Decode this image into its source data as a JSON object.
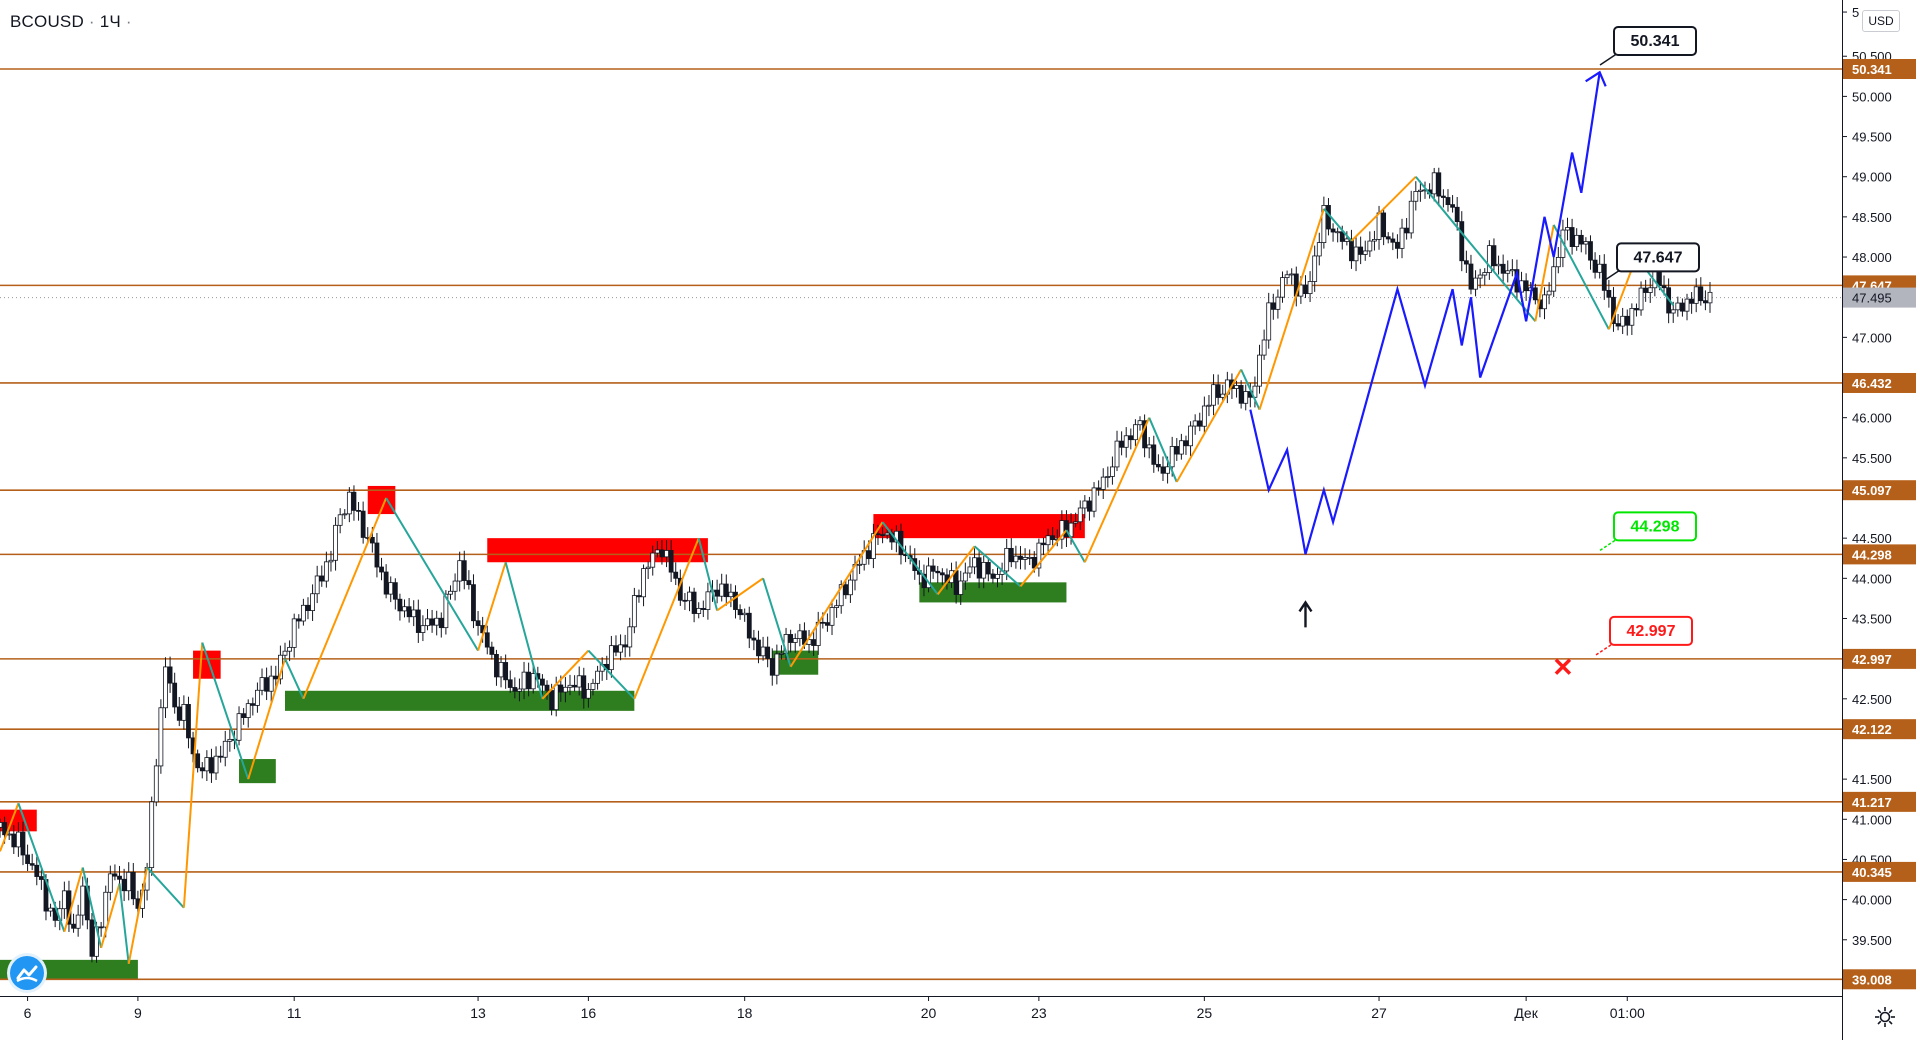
{
  "header": {
    "symbol": "BCOUSD",
    "separator1": "·",
    "interval": "1Ч",
    "separator2": "·"
  },
  "currency": "USD",
  "icons": {
    "settings": "gear-icon",
    "logo": "tradingview-cloud-icon"
  },
  "chart_data": {
    "type": "candlestick",
    "title": "BCOUSD · 1Ч",
    "ylim": [
      38.8,
      51.2
    ],
    "y_axis_ticks": [
      "5",
      "50.500",
      "50.000",
      "49.500",
      "49.000",
      "48.500",
      "48.000",
      "47.000",
      "46.000",
      "45.500",
      "44.500",
      "44.000",
      "43.500",
      "42.500",
      "41.500",
      "41.000",
      "40.500",
      "40.000",
      "39.500"
    ],
    "x_axis_ticks": [
      "6",
      "9",
      "11",
      "13",
      "16",
      "18",
      "20",
      "23",
      "25",
      "27",
      "Дек",
      "01:00"
    ],
    "current_price": "47.495",
    "levels": [
      "50.341",
      "47.647",
      "46.432",
      "45.097",
      "44.298",
      "42.997",
      "42.122",
      "41.217",
      "40.345",
      "39.008"
    ],
    "level_color": "#b5601a",
    "targets": [
      {
        "label": "50.341",
        "value": 50.341,
        "color": "#131722"
      },
      {
        "label": "47.647",
        "value": 47.647,
        "color": "#131722"
      },
      {
        "label": "44.298",
        "value": 44.298,
        "color": "#00e600"
      },
      {
        "label": "42.997",
        "value": 42.997,
        "color": "#ff1a1a"
      }
    ],
    "price_path": [
      [
        0,
        40.9
      ],
      [
        2,
        40.7
      ],
      [
        4,
        40.3
      ],
      [
        6,
        39.7
      ],
      [
        7,
        40.1
      ],
      [
        8,
        39.5
      ],
      [
        9,
        40.2
      ],
      [
        10,
        39.3
      ],
      [
        12,
        40.3
      ],
      [
        14,
        40.2
      ],
      [
        15,
        39.9
      ],
      [
        16,
        40.4
      ],
      [
        17,
        41.8
      ],
      [
        18,
        42.9
      ],
      [
        19,
        42.4
      ],
      [
        20,
        42.3
      ],
      [
        21,
        41.8
      ],
      [
        22,
        41.6
      ],
      [
        24,
        41.8
      ],
      [
        26,
        42.2
      ],
      [
        28,
        42.6
      ],
      [
        30,
        42.8
      ],
      [
        32,
        43.4
      ],
      [
        34,
        43.8
      ],
      [
        36,
        44.3
      ],
      [
        37,
        44.8
      ],
      [
        38,
        45.0
      ],
      [
        40,
        44.5
      ],
      [
        42,
        43.9
      ],
      [
        44,
        43.6
      ],
      [
        46,
        43.4
      ],
      [
        48,
        43.5
      ],
      [
        50,
        44.2
      ],
      [
        52,
        43.4
      ],
      [
        54,
        42.9
      ],
      [
        56,
        42.6
      ],
      [
        58,
        42.8
      ],
      [
        60,
        42.5
      ],
      [
        62,
        42.7
      ],
      [
        64,
        42.6
      ],
      [
        66,
        43.0
      ],
      [
        68,
        43.2
      ],
      [
        70,
        44.1
      ],
      [
        72,
        44.4
      ],
      [
        74,
        43.8
      ],
      [
        76,
        43.6
      ],
      [
        78,
        43.9
      ],
      [
        80,
        43.7
      ],
      [
        82,
        43.2
      ],
      [
        84,
        42.9
      ],
      [
        86,
        43.3
      ],
      [
        88,
        43.2
      ],
      [
        90,
        43.5
      ],
      [
        92,
        43.9
      ],
      [
        94,
        44.3
      ],
      [
        96,
        44.6
      ],
      [
        98,
        44.4
      ],
      [
        100,
        44.0
      ],
      [
        102,
        44.1
      ],
      [
        104,
        43.9
      ],
      [
        106,
        44.2
      ],
      [
        108,
        44.0
      ],
      [
        110,
        44.3
      ],
      [
        112,
        44.2
      ],
      [
        114,
        44.5
      ],
      [
        116,
        44.6
      ],
      [
        118,
        44.9
      ],
      [
        120,
        45.2
      ],
      [
        122,
        45.7
      ],
      [
        124,
        45.9
      ],
      [
        126,
        45.3
      ],
      [
        128,
        45.6
      ],
      [
        130,
        45.9
      ],
      [
        132,
        46.3
      ],
      [
        134,
        46.4
      ],
      [
        136,
        46.2
      ],
      [
        138,
        47.3
      ],
      [
        140,
        47.8
      ],
      [
        142,
        47.5
      ],
      [
        144,
        48.5
      ],
      [
        146,
        48.2
      ],
      [
        148,
        48.0
      ],
      [
        150,
        48.4
      ],
      [
        152,
        48.1
      ],
      [
        154,
        48.8
      ],
      [
        156,
        48.9
      ],
      [
        158,
        48.6
      ],
      [
        160,
        47.6
      ],
      [
        162,
        48.0
      ],
      [
        164,
        47.8
      ],
      [
        166,
        47.6
      ],
      [
        168,
        47.4
      ],
      [
        170,
        48.3
      ],
      [
        172,
        48.2
      ],
      [
        174,
        47.8
      ],
      [
        176,
        47.1
      ],
      [
        178,
        47.4
      ],
      [
        180,
        47.8
      ],
      [
        182,
        47.3
      ],
      [
        184,
        47.5
      ],
      [
        186,
        47.5
      ]
    ],
    "candle_time_range": [
      0,
      186
    ],
    "zones": [
      {
        "type": "supply",
        "t0": 0,
        "t1": 4,
        "y0": 40.85,
        "y1": 41.12
      },
      {
        "type": "demand",
        "t0": 0,
        "t1": 15,
        "y0": 39.0,
        "y1": 39.25
      },
      {
        "type": "supply",
        "t0": 21,
        "t1": 24,
        "y0": 42.75,
        "y1": 43.1
      },
      {
        "type": "demand",
        "t0": 26,
        "t1": 30,
        "y0": 41.45,
        "y1": 41.75
      },
      {
        "type": "supply",
        "t0": 40,
        "t1": 43,
        "y0": 44.8,
        "y1": 45.15
      },
      {
        "type": "demand",
        "t0": 31,
        "t1": 69,
        "y0": 42.35,
        "y1": 42.6
      },
      {
        "type": "supply",
        "t0": 53,
        "t1": 77,
        "y0": 44.2,
        "y1": 44.5
      },
      {
        "type": "demand",
        "t0": 84,
        "t1": 89,
        "y0": 42.8,
        "y1": 43.1
      },
      {
        "type": "supply",
        "t0": 95,
        "t1": 118,
        "y0": 44.5,
        "y1": 44.8
      },
      {
        "type": "demand",
        "t0": 100,
        "t1": 116,
        "y0": 43.7,
        "y1": 43.95
      }
    ],
    "zigzag": [
      [
        0,
        40.6
      ],
      [
        2,
        41.2
      ],
      [
        7,
        39.6
      ],
      [
        9,
        40.4
      ],
      [
        11,
        39.4
      ],
      [
        13,
        40.2
      ],
      [
        14,
        39.2
      ],
      [
        16,
        40.4
      ],
      [
        20,
        39.9
      ],
      [
        22,
        43.2
      ],
      [
        27,
        41.5
      ],
      [
        31,
        43.0
      ],
      [
        33,
        42.5
      ],
      [
        42,
        45.0
      ],
      [
        52,
        43.1
      ],
      [
        55,
        44.2
      ],
      [
        59,
        42.5
      ],
      [
        64,
        43.1
      ],
      [
        69,
        42.5
      ],
      [
        76,
        44.5
      ],
      [
        78,
        43.6
      ],
      [
        83,
        44.0
      ],
      [
        86,
        42.9
      ],
      [
        96,
        44.7
      ],
      [
        102,
        43.8
      ],
      [
        106,
        44.4
      ],
      [
        111,
        43.9
      ],
      [
        116,
        44.6
      ],
      [
        118,
        44.2
      ],
      [
        125,
        46.0
      ],
      [
        128,
        45.2
      ],
      [
        135,
        46.6
      ],
      [
        137,
        46.1
      ],
      [
        144,
        48.6
      ],
      [
        147,
        48.2
      ],
      [
        154,
        49.0
      ],
      [
        159,
        48.3
      ],
      [
        167,
        47.2
      ],
      [
        169,
        48.4
      ],
      [
        175,
        47.1
      ],
      [
        178,
        48.0
      ],
      [
        182,
        47.4
      ]
    ],
    "projection": [
      [
        136,
        46.1
      ],
      [
        138,
        45.1
      ],
      [
        140,
        45.6
      ],
      [
        142,
        44.3
      ],
      [
        144,
        45.1
      ],
      [
        145,
        44.7
      ],
      [
        152,
        47.6
      ],
      [
        155,
        46.4
      ],
      [
        158,
        47.6
      ],
      [
        159,
        46.9
      ],
      [
        160,
        47.5
      ],
      [
        161,
        46.5
      ],
      [
        165,
        47.8
      ],
      [
        166,
        47.2
      ],
      [
        168,
        48.5
      ],
      [
        169,
        48.0
      ],
      [
        171,
        49.3
      ],
      [
        172,
        48.8
      ],
      [
        174,
        50.3
      ]
    ],
    "projection_color": "#1a1aff",
    "entry_arrow": {
      "t": 142,
      "price": 43.7
    },
    "stop_marker": {
      "t": 170,
      "price": 42.9
    }
  }
}
